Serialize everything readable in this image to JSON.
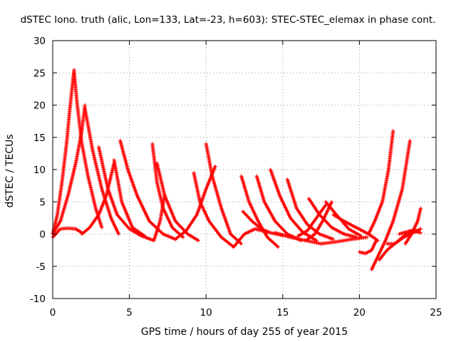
{
  "chart_data": {
    "type": "scatter",
    "title": "dSTEC Iono. truth (alic, Lon=133, Lat=-23, h=603): STEC-STEC_elemax in phase cont.",
    "xlabel": "GPS time / hours of day 255 of year 2015",
    "ylabel": "dSTEC  / TECUs",
    "xlim": [
      0,
      25
    ],
    "ylim": [
      -10,
      30
    ],
    "xticks": [
      "0",
      "5",
      "10",
      "15",
      "20",
      "25"
    ],
    "yticks": [
      "-10",
      "-5",
      "0",
      "5",
      "10",
      "15",
      "20",
      "25",
      "30"
    ],
    "grid": true,
    "marker": "+",
    "color": "#ff0000",
    "series": [
      {
        "x": [
          0,
          0.3,
          0.6,
          0.9,
          1.1,
          1.3,
          1.4
        ],
        "y": [
          0,
          3,
          8,
          14,
          19,
          23.5,
          25.5
        ]
      },
      {
        "x": [
          1.4,
          1.6,
          1.9,
          2.3,
          2.8,
          3.2
        ],
        "y": [
          25,
          20,
          14,
          9,
          4,
          1
        ]
      },
      {
        "x": [
          0,
          0.5,
          1,
          1.5,
          1.9,
          2.1
        ],
        "y": [
          0,
          2,
          6,
          11,
          16,
          20
        ]
      },
      {
        "x": [
          2.1,
          2.6,
          3.2,
          3.8,
          4.3
        ],
        "y": [
          19.5,
          13,
          7,
          2.5,
          0
        ]
      },
      {
        "x": [
          0,
          0.5,
          1.0,
          1.5,
          1.9
        ],
        "y": [
          -0.5,
          0.8,
          0.9,
          0.8,
          0.2
        ]
      },
      {
        "x": [
          1.9,
          2.4,
          3.0,
          3.5,
          4.0
        ],
        "y": [
          0,
          1.0,
          3.0,
          6.0,
          11.0
        ]
      },
      {
        "x": [
          3.0,
          3.6,
          4.2,
          5.0,
          5.8,
          6.6
        ],
        "y": [
          13.5,
          7,
          3,
          0.8,
          -0.3,
          -1.0
        ]
      },
      {
        "x": [
          4.0,
          4.5,
          5.2,
          6.0
        ],
        "y": [
          11.5,
          5,
          1,
          -0.3
        ]
      },
      {
        "x": [
          4.4,
          4.9,
          5.5,
          6.3,
          7.2,
          8.0
        ],
        "y": [
          14.5,
          10,
          6,
          2,
          0,
          -0.8
        ]
      },
      {
        "x": [
          6.6,
          7.0,
          7.3
        ],
        "y": [
          -1.0,
          2,
          6
        ]
      },
      {
        "x": [
          6.5,
          6.8,
          7.2,
          7.8,
          8.5
        ],
        "y": [
          14,
          8,
          4,
          1,
          -0.5
        ]
      },
      {
        "x": [
          6.8,
          7.3,
          8.0,
          8.8,
          9.5
        ],
        "y": [
          11,
          6,
          2,
          0,
          -1
        ]
      },
      {
        "x": [
          9.2,
          9.6,
          10.2,
          11.0,
          11.8
        ],
        "y": [
          9.5,
          5,
          2,
          -0.5,
          -2
        ]
      },
      {
        "x": [
          8.0,
          8.7,
          9.4,
          10.0,
          10.6
        ],
        "y": [
          -0.8,
          0.5,
          3,
          7,
          10.5
        ]
      },
      {
        "x": [
          10.0,
          10.4,
          11.0,
          11.6,
          12.3
        ],
        "y": [
          14,
          9,
          4,
          0,
          -1.5
        ]
      },
      {
        "x": [
          11.8,
          12.5,
          13.2,
          14.0
        ],
        "y": [
          -2,
          0,
          0.8,
          0.3
        ]
      },
      {
        "x": [
          12.3,
          12.8,
          13.4,
          14.0,
          14.7
        ],
        "y": [
          9,
          5,
          2,
          -0.5,
          -2
        ]
      },
      {
        "x": [
          12.4,
          13.0,
          13.6,
          14.2,
          15.0
        ],
        "y": [
          3.5,
          2,
          0.8,
          0.2,
          -0.2
        ]
      },
      {
        "x": [
          13.3,
          13.8,
          14.5,
          15.3,
          16.2
        ],
        "y": [
          9,
          5,
          2,
          0,
          -1
        ]
      },
      {
        "x": [
          14.2,
          14.8,
          15.5,
          16.3,
          17.2
        ],
        "y": [
          10,
          6,
          2.5,
          0.3,
          -1.0
        ]
      },
      {
        "x": [
          15.3,
          15.9,
          16.6,
          17.4,
          18.3
        ],
        "y": [
          8.5,
          4,
          1.5,
          0,
          -0.8
        ]
      },
      {
        "x": [
          16.0,
          16.6,
          17.2,
          17.8
        ],
        "y": [
          -0.3,
          0.5,
          2.5,
          4.5
        ]
      },
      {
        "x": [
          16.5,
          17.1,
          17.6,
          18.2
        ],
        "y": [
          -1,
          0,
          2,
          5
        ]
      },
      {
        "x": [
          16.7,
          17.4,
          18.2,
          19.0,
          19.8
        ],
        "y": [
          5.5,
          3,
          1,
          0,
          -0.5
        ]
      },
      {
        "x": [
          17.8,
          18.5,
          19.3,
          20.1
        ],
        "y": [
          5,
          3,
          0.8,
          -0.3
        ]
      },
      {
        "x": [
          18.3,
          19.0,
          19.8,
          20.6,
          21.2
        ],
        "y": [
          3,
          2,
          1,
          0,
          -1
        ]
      },
      {
        "x": [
          14.5,
          15.5,
          16.5,
          17.5,
          18.5,
          19.5,
          20.5
        ],
        "y": [
          0.2,
          -0.5,
          -1,
          -1.5,
          -1.2,
          -0.8,
          -0.5
        ]
      },
      {
        "x": [
          20.0,
          20.4,
          20.8,
          21.1
        ],
        "y": [
          -2.8,
          -3,
          -2.5,
          -1
        ]
      },
      {
        "x": [
          20.6,
          21.0,
          21.5,
          21.9,
          22.2
        ],
        "y": [
          0,
          2,
          5,
          10,
          16
        ]
      },
      {
        "x": [
          20.8,
          21.2,
          21.7,
          22.2,
          22.8,
          23.3
        ],
        "y": [
          -5.5,
          -3.5,
          -1,
          2,
          7,
          14.5
        ]
      },
      {
        "x": [
          21.3,
          21.8,
          22.3,
          22.9,
          23.5,
          24.0
        ],
        "y": [
          -4,
          -2.5,
          -1.5,
          -0.5,
          0.2,
          0.8
        ]
      },
      {
        "x": [
          21.8,
          22.3,
          22.8,
          23.3,
          23.8
        ],
        "y": [
          -1.5,
          -1.5,
          -0.5,
          0.5,
          0.5
        ]
      },
      {
        "x": [
          23.0,
          23.4,
          23.8,
          24.0
        ],
        "y": [
          -1.5,
          0,
          2,
          4
        ]
      },
      {
        "x": [
          22.6,
          23.0,
          23.5,
          24.0
        ],
        "y": [
          0,
          0.3,
          0.5,
          0.2
        ]
      }
    ]
  }
}
